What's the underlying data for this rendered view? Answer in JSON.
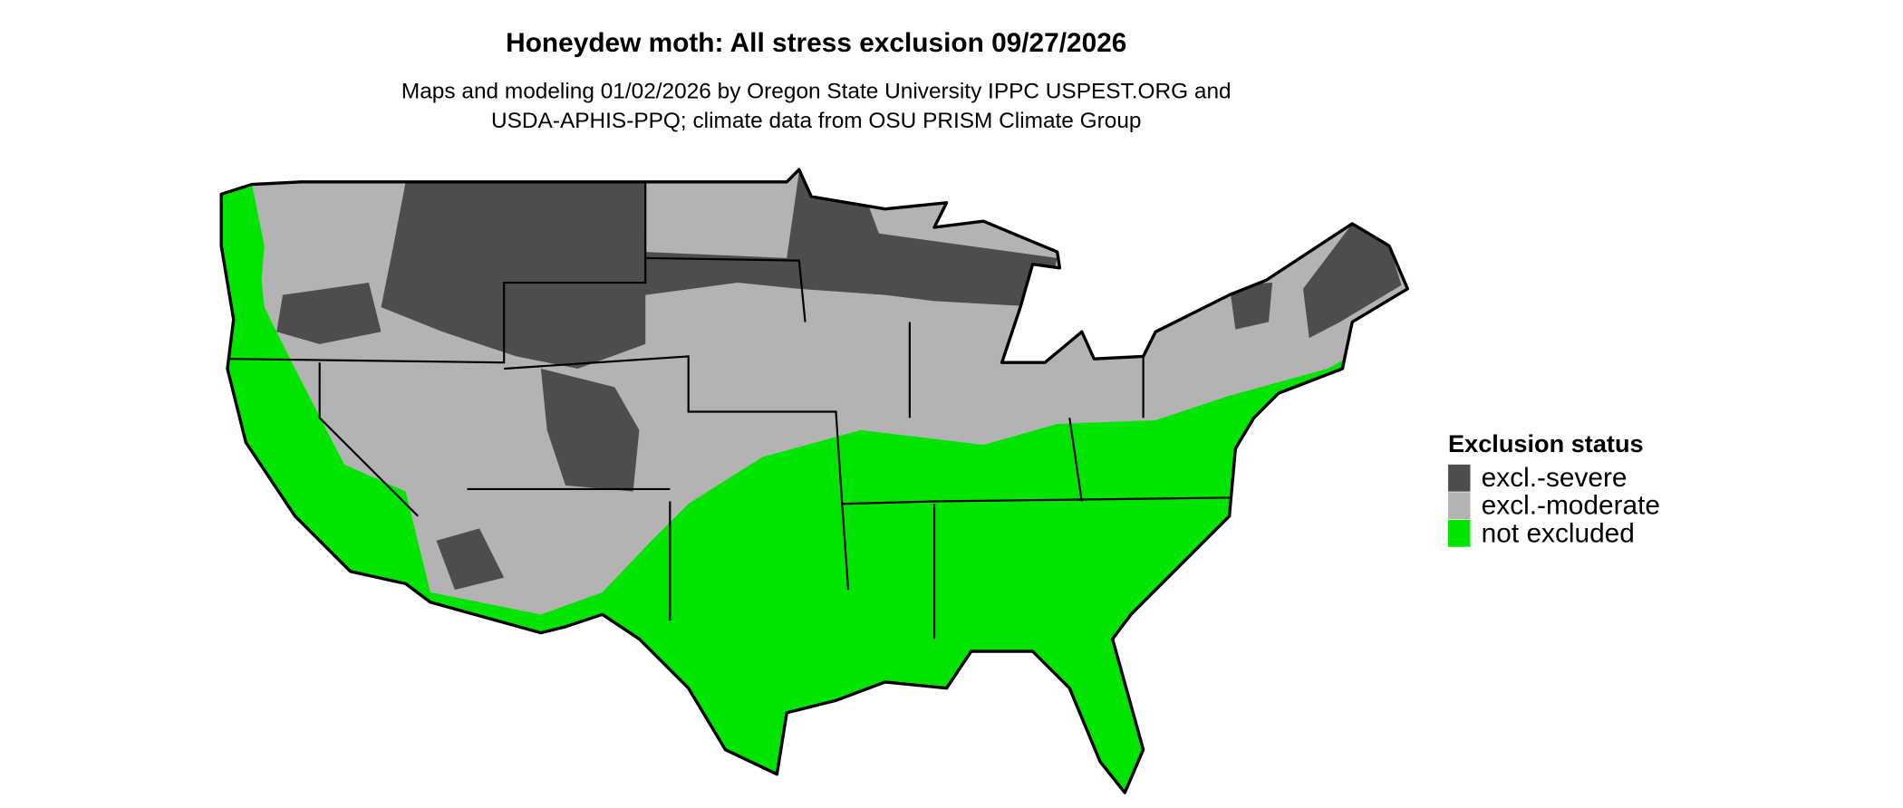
{
  "title": "Honeydew moth: All stress exclusion 09/27/2026",
  "subtitle": [
    "Maps and modeling 01/02/2026 by Oregon State University IPPC USPEST.ORG and",
    "USDA-APHIS-PPQ; climate data from OSU PRISM Climate Group"
  ],
  "legend": {
    "title": "Exclusion status",
    "items": [
      {
        "label": "excl.-severe",
        "color": "#4d4d4d"
      },
      {
        "label": "excl.-moderate",
        "color": "#b3b3b3"
      },
      {
        "label": "not excluded",
        "color": "#00e400"
      }
    ]
  }
}
